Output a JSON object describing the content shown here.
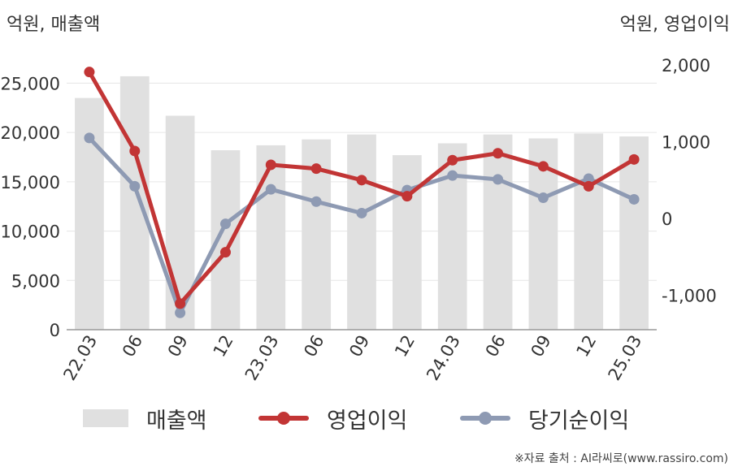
{
  "units": {
    "left": "억원, 매출액",
    "right": "억원, 영업이익"
  },
  "source": "※자료 출처 : AI라씨로(www.rassiro.com)",
  "colors": {
    "bar": "#e0e0e0",
    "operating": "#c23535",
    "net": "#8e9ab3",
    "axis": "#999999",
    "grid": "#e6e6e6"
  },
  "chart_data": {
    "type": "bar",
    "categories": [
      "22.03",
      "06",
      "09",
      "12",
      "23.03",
      "06",
      "09",
      "12",
      "24.03",
      "06",
      "09",
      "12",
      "25.03"
    ],
    "left_axis": {
      "ticks": [
        0,
        5000,
        10000,
        15000,
        20000,
        25000
      ],
      "tick_labels": [
        "0",
        "5,000",
        "10,000",
        "15,000",
        "20,000",
        "25,000"
      ],
      "range": [
        0,
        28000
      ]
    },
    "right_axis": {
      "ticks": [
        -1000,
        0,
        1000,
        2000
      ],
      "tick_labels": [
        "-1,000",
        "0",
        "1,000",
        "2,000"
      ],
      "range": [
        -1450,
        2150
      ]
    },
    "grid": true,
    "legend_position": "bottom",
    "series": [
      {
        "name": "매출액",
        "type": "bar",
        "axis": "left",
        "values": [
          23500,
          25700,
          21700,
          18200,
          18700,
          19300,
          19800,
          17700,
          18900,
          19800,
          19400,
          19900,
          19600
        ]
      },
      {
        "name": "영업이익",
        "type": "line",
        "axis": "right",
        "values": [
          1910,
          880,
          -1110,
          -440,
          700,
          650,
          500,
          290,
          760,
          850,
          680,
          420,
          770
        ]
      },
      {
        "name": "당기순이익",
        "type": "line",
        "axis": "right",
        "values": [
          1050,
          420,
          -1230,
          -70,
          380,
          220,
          70,
          370,
          560,
          510,
          270,
          520,
          250
        ]
      }
    ]
  }
}
